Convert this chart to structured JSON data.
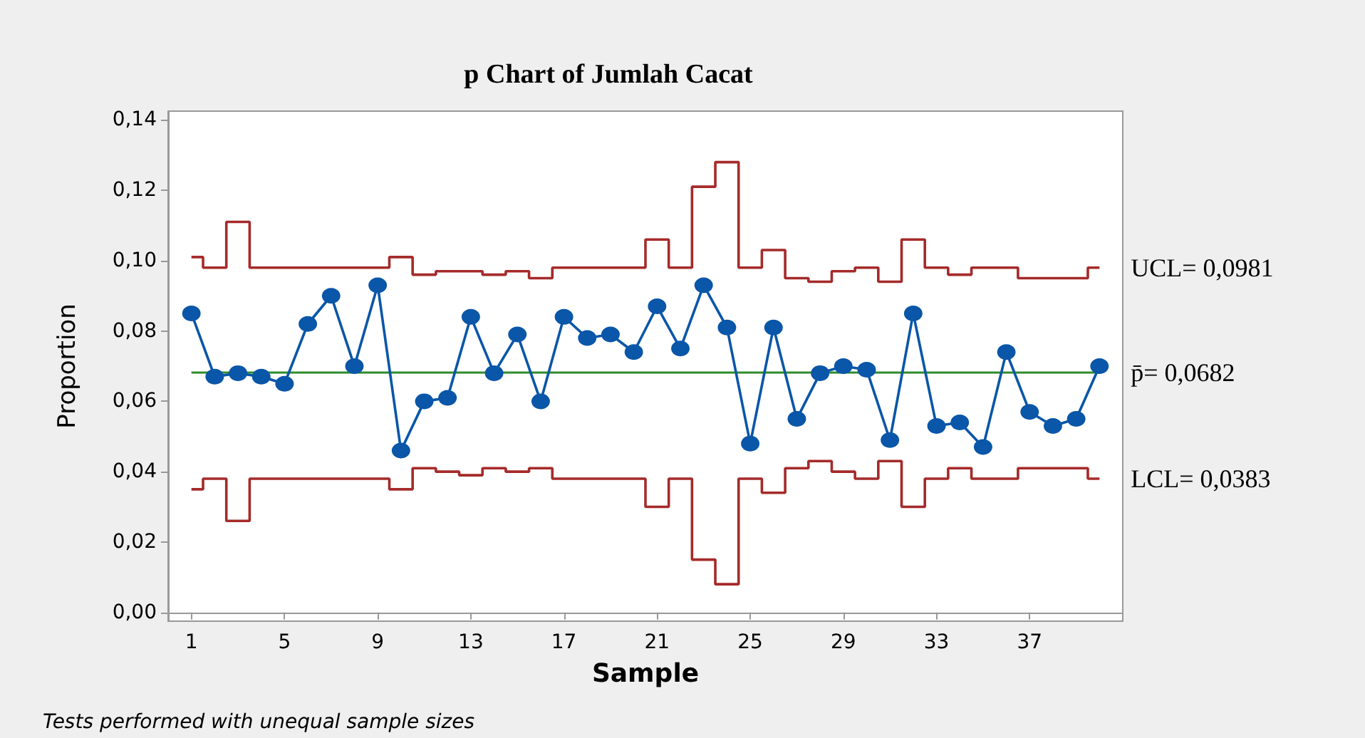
{
  "chart_data": {
    "type": "line",
    "title": "p Chart of Jumlah Cacat",
    "xlabel": "Sample",
    "ylabel": "Proportion",
    "annotations": [
      "Tests performed with unequal sample sizes"
    ],
    "x": [
      1,
      2,
      3,
      4,
      5,
      6,
      7,
      8,
      9,
      10,
      11,
      12,
      13,
      14,
      15,
      16,
      17,
      18,
      19,
      20,
      21,
      22,
      23,
      24,
      25,
      26,
      27,
      28,
      29,
      30,
      31,
      32,
      33,
      34,
      35,
      36,
      37,
      38,
      39,
      40
    ],
    "series": [
      {
        "name": "UCL= 0,0981",
        "type": "step",
        "color": "#a52a2a",
        "marker": "none",
        "values": [
          0.101,
          0.098,
          0.111,
          0.098,
          0.098,
          0.098,
          0.098,
          0.098,
          0.098,
          0.101,
          0.096,
          0.097,
          0.097,
          0.096,
          0.097,
          0.095,
          0.098,
          0.098,
          0.098,
          0.098,
          0.106,
          0.098,
          0.121,
          0.128,
          0.098,
          0.103,
          0.095,
          0.094,
          0.097,
          0.098,
          0.094,
          0.106,
          0.098,
          0.096,
          0.098,
          0.098,
          0.095,
          0.095,
          0.095,
          0.098
        ]
      },
      {
        "name": "LCL= 0,0383",
        "type": "step",
        "color": "#a52a2a",
        "marker": "none",
        "values": [
          0.035,
          0.038,
          0.026,
          0.038,
          0.038,
          0.038,
          0.038,
          0.038,
          0.038,
          0.035,
          0.041,
          0.04,
          0.039,
          0.041,
          0.04,
          0.041,
          0.038,
          0.038,
          0.038,
          0.038,
          0.03,
          0.038,
          0.015,
          0.008,
          0.038,
          0.034,
          0.041,
          0.043,
          0.04,
          0.038,
          0.043,
          0.03,
          0.038,
          0.041,
          0.038,
          0.038,
          0.041,
          0.041,
          0.041,
          0.038
        ]
      },
      {
        "type": "line",
        "color": "#0a56a8",
        "marker": "circle",
        "values": [
          0.085,
          0.067,
          0.068,
          0.067,
          0.065,
          0.082,
          0.09,
          0.07,
          0.093,
          0.046,
          0.06,
          0.061,
          0.084,
          0.068,
          0.079,
          0.06,
          0.084,
          0.078,
          0.079,
          0.074,
          0.087,
          0.075,
          0.093,
          0.081,
          0.048,
          0.081,
          0.055,
          0.068,
          0.07,
          0.069,
          0.049,
          0.085,
          0.053,
          0.054,
          0.047,
          0.074,
          0.057,
          0.053,
          0.055,
          0.07
        ]
      }
    ],
    "ref_lines": [
      {
        "axis": "y",
        "value": 0.0682,
        "label": "p̄= 0,0682",
        "color": "#2e8b2e"
      }
    ],
    "xlim": [
      0,
      41
    ],
    "xticks": [
      1,
      5,
      9,
      13,
      17,
      21,
      25,
      29,
      33,
      37
    ],
    "ylim": [
      -0.0025,
      0.1425
    ],
    "yticks": [
      {
        "value": 0,
        "label": "0,00"
      },
      {
        "value": 0.02,
        "label": "0,02"
      },
      {
        "value": 0.04,
        "label": "0,04"
      },
      {
        "value": 0.06,
        "label": "0,06"
      },
      {
        "value": 0.08,
        "label": "0,08"
      },
      {
        "value": 0.1,
        "label": "0,10"
      },
      {
        "value": 0.12,
        "label": "0,12"
      },
      {
        "value": 0.14,
        "label": "0,14"
      }
    ],
    "legend": false
  }
}
